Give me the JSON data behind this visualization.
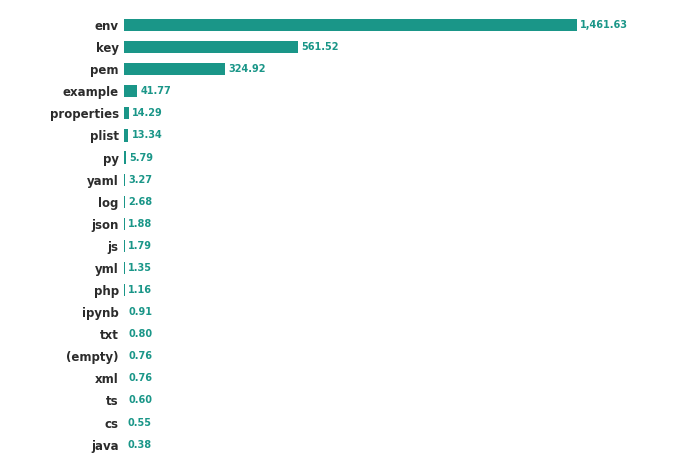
{
  "categories": [
    "env",
    "key",
    "pem",
    "example",
    "properties",
    "plist",
    "py",
    "yaml",
    "log",
    "json",
    "js",
    "yml",
    "php",
    "ipynb",
    "txt",
    "(empty)",
    "xml",
    "ts",
    "cs",
    "java"
  ],
  "values": [
    1461.63,
    561.52,
    324.92,
    41.77,
    14.29,
    13.34,
    5.79,
    3.27,
    2.68,
    1.88,
    1.79,
    1.35,
    1.16,
    0.91,
    0.8,
    0.76,
    0.76,
    0.6,
    0.55,
    0.38
  ],
  "bar_color": "#1a9688",
  "label_color": "#1a9688",
  "category_color": "#2b2b2b",
  "background_color": "#ffffff",
  "bar_height": 0.55,
  "figsize": [
    6.9,
    4.65
  ],
  "dpi": 100,
  "label_fontsize": 7.0,
  "category_fontsize": 8.5
}
